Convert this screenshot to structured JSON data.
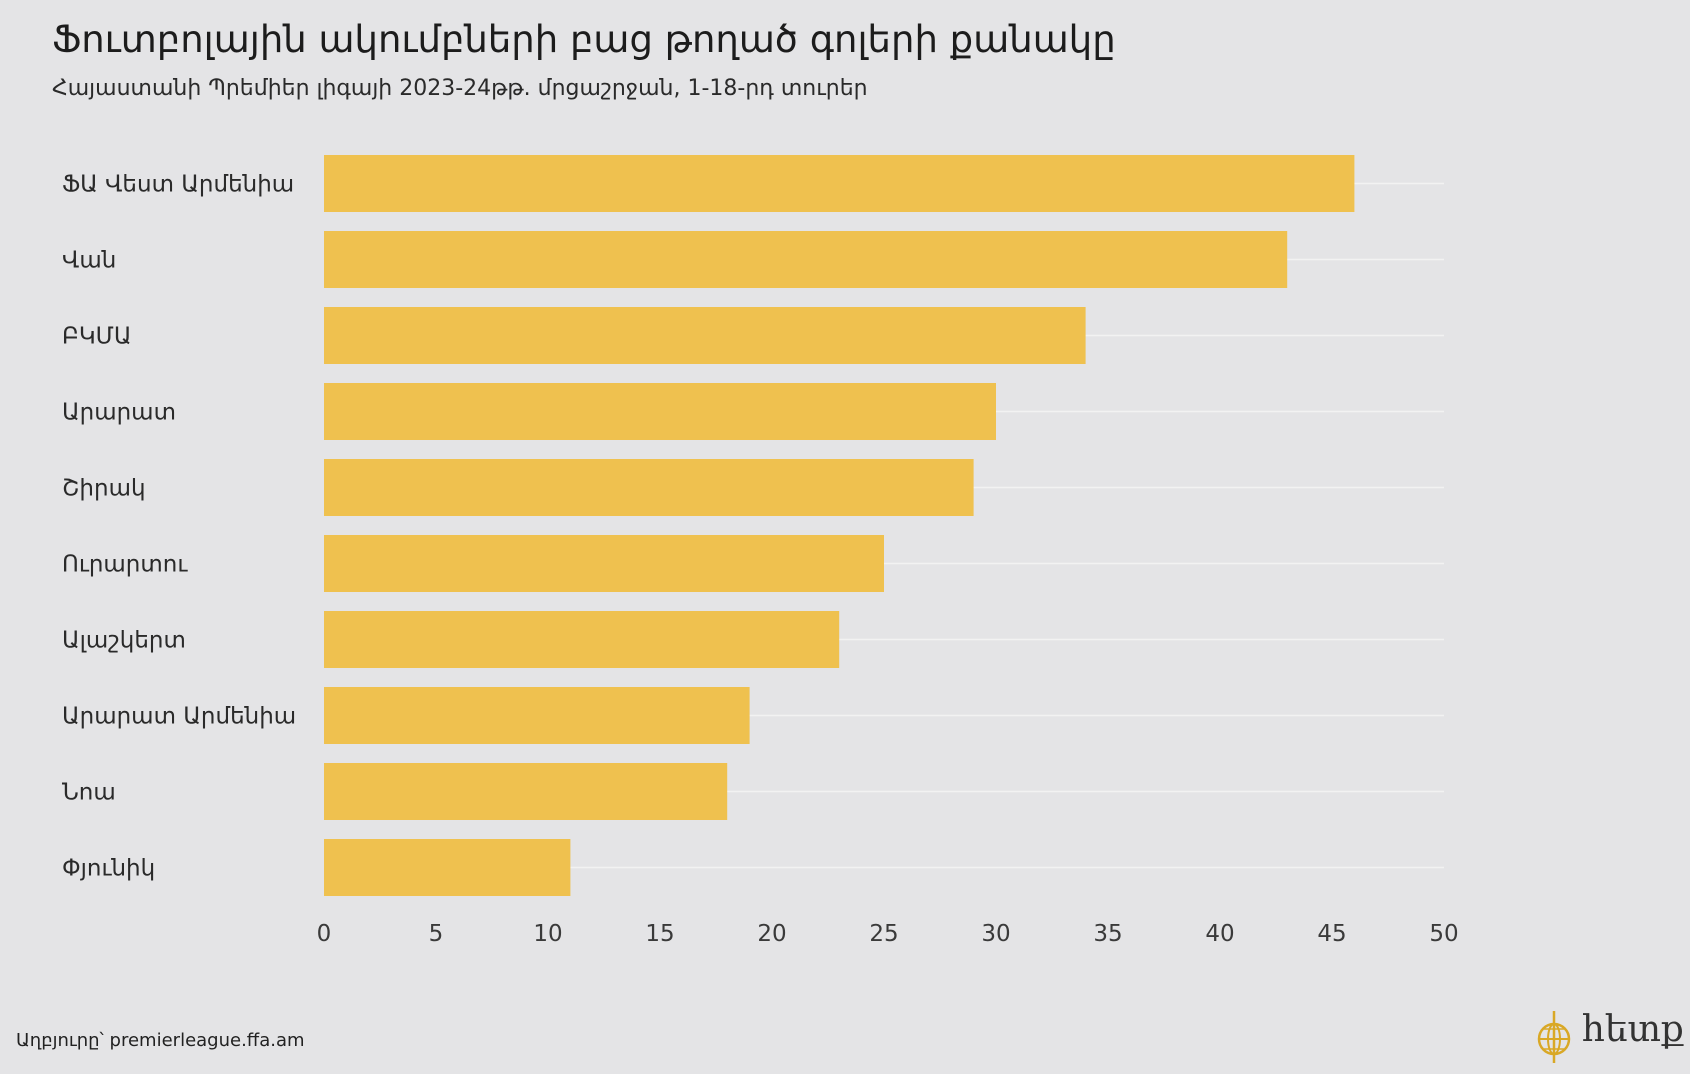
{
  "title": "Ֆուտբոլային ակումբների բաց թողած գոլերի քանակը",
  "subtitle": "Հայաստանի Պրեմիեր լիգայի 2023-24թթ. մրցաշրջան, 1-18-րդ տուրեր",
  "source": "Աղբյուրը՝ premierleague.ffa.am",
  "logo": {
    "text": "հետք",
    "icon": "globe-icon"
  },
  "colors": {
    "bar": "#efc14f",
    "background": "#e4e4e6",
    "grid": "#f2f2f2"
  },
  "chart_data": {
    "type": "bar",
    "orientation": "horizontal",
    "title": "Ֆուտբոլային ակումբների բաց թողած գոլերի քանակը",
    "subtitle": "Հայաստանի Պրեմիեր լիգայի 2023-24թթ. մրցաշրջան, 1-18-րդ տուրեր",
    "categories": [
      "ՖԱ Վեստ Արմենիա",
      "Վան",
      "ԲԿՄԱ",
      "Արարատ",
      "Շիրակ",
      "Ուրարտու",
      "Ալաշկերտ",
      "Արարատ Արմենիա",
      "Նոա",
      "Փյունիկ"
    ],
    "values": [
      46,
      43,
      34,
      30,
      29,
      25,
      23,
      19,
      18,
      11
    ],
    "xlim": [
      0,
      50
    ],
    "xticks": [
      0,
      5,
      10,
      15,
      20,
      25,
      30,
      35,
      40,
      45,
      50
    ],
    "xlabel": "",
    "ylabel": "",
    "grid": true,
    "legend": "none"
  }
}
